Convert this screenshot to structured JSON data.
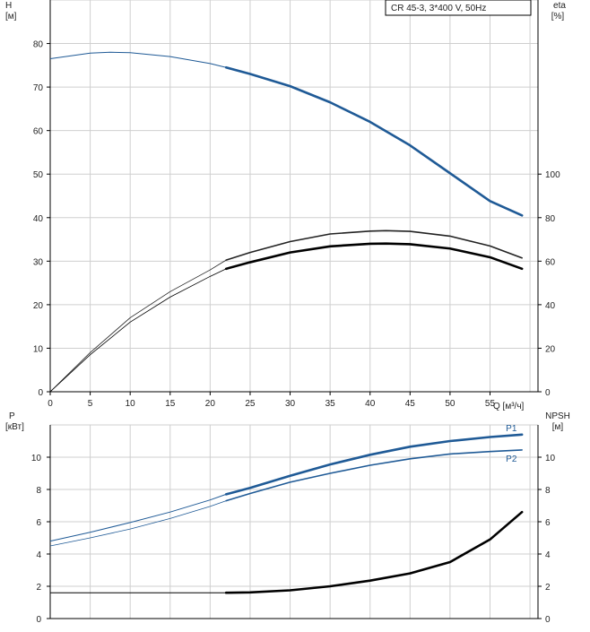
{
  "chart_data": [
    {
      "type": "line",
      "legend_box": "CR 45-3, 3*400 V, 50Hz",
      "xlabel": "Q [м³/ч]",
      "ylabel_left": [
        "H",
        "[м]"
      ],
      "ylabel_right": [
        "eta",
        "[%]"
      ],
      "xlim": [
        0,
        61
      ],
      "ylim": [
        0,
        90
      ],
      "y2lim": [
        0,
        180
      ],
      "x_ticks": [
        "0",
        "5",
        "10",
        "15",
        "20",
        "25",
        "30",
        "35",
        "40",
        "45",
        "50",
        "55"
      ],
      "y_ticks": [
        "0",
        "10",
        "20",
        "30",
        "40",
        "50",
        "60",
        "70",
        "80"
      ],
      "y2_ticks": [
        "0",
        "20",
        "40",
        "60",
        "80",
        "100"
      ],
      "grid": true,
      "series": [
        {
          "axis": "left",
          "color": "#1f5a96",
          "x": [
            0,
            5,
            7.5,
            10,
            15,
            20,
            22,
            25,
            30,
            35,
            40,
            45,
            50,
            55,
            59
          ],
          "values": [
            76.5,
            77.8,
            78.0,
            77.9,
            77.0,
            75.4,
            74.5,
            73.0,
            70.2,
            66.5,
            62.0,
            56.6,
            50.2,
            43.8,
            40.5
          ]
        },
        {
          "axis": "right",
          "color": "#222222",
          "x": [
            0,
            5,
            10,
            15,
            20,
            22,
            25,
            30,
            35,
            40,
            42,
            45,
            50,
            55,
            59
          ],
          "values": [
            0,
            18,
            34,
            46,
            56,
            60.5,
            64,
            69,
            72.5,
            73.8,
            74,
            73.7,
            71.5,
            67,
            61.5
          ]
        },
        {
          "axis": "right",
          "color": "#000000",
          "x": [
            0,
            5,
            10,
            15,
            20,
            22,
            25,
            30,
            35,
            40,
            42,
            45,
            50,
            55,
            59
          ],
          "values": [
            0,
            17,
            32,
            43.5,
            53,
            56.5,
            59.5,
            64,
            66.8,
            68,
            68.1,
            67.8,
            65.8,
            61.8,
            56.5
          ]
        }
      ]
    },
    {
      "type": "line",
      "xlim": [
        0,
        61
      ],
      "ylim": [
        0,
        12
      ],
      "ylabel_left": [
        "P",
        "[кВт]"
      ],
      "ylabel_right": [
        "NPSH",
        "[м]"
      ],
      "y_ticks": [
        "0",
        "2",
        "4",
        "6",
        "8",
        "10"
      ],
      "y2_ticks": [
        "0",
        "2",
        "4",
        "6",
        "8",
        "10"
      ],
      "grid": true,
      "series": [
        {
          "name": "P1",
          "color": "#1f5a96",
          "x": [
            0,
            5,
            10,
            15,
            20,
            22,
            25,
            30,
            35,
            40,
            45,
            50,
            55,
            59
          ],
          "values": [
            4.8,
            5.35,
            5.95,
            6.6,
            7.35,
            7.7,
            8.1,
            8.85,
            9.55,
            10.15,
            10.65,
            11.0,
            11.25,
            11.4
          ]
        },
        {
          "name": "P2",
          "color": "#1f5a96",
          "x": [
            0,
            5,
            10,
            15,
            20,
            22,
            25,
            30,
            35,
            40,
            45,
            50,
            55,
            59
          ],
          "values": [
            4.5,
            5.0,
            5.55,
            6.2,
            6.95,
            7.3,
            7.75,
            8.45,
            9.0,
            9.5,
            9.9,
            10.2,
            10.35,
            10.45
          ]
        },
        {
          "name": "NPSH",
          "color": "#000000",
          "x": [
            0,
            10,
            20,
            22,
            25,
            30,
            35,
            40,
            45,
            50,
            55,
            59
          ],
          "values": [
            1.6,
            1.6,
            1.6,
            1.6,
            1.62,
            1.75,
            2.0,
            2.35,
            2.8,
            3.5,
            4.9,
            6.6
          ]
        }
      ]
    }
  ]
}
